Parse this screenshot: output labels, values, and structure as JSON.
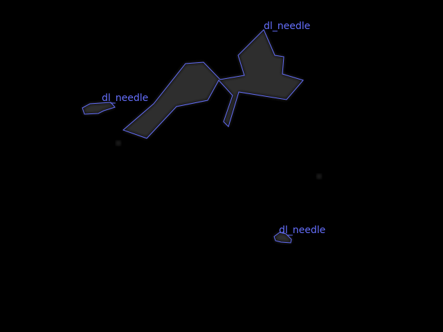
{
  "image": {
    "background_color": "#000000",
    "object_fill_color": "#2e2e2e",
    "outline_color": "#6670ff"
  },
  "segments": [
    {
      "label": "dl_needle"
    },
    {
      "label": "dl_needle"
    },
    {
      "label": "dl_needle"
    }
  ]
}
